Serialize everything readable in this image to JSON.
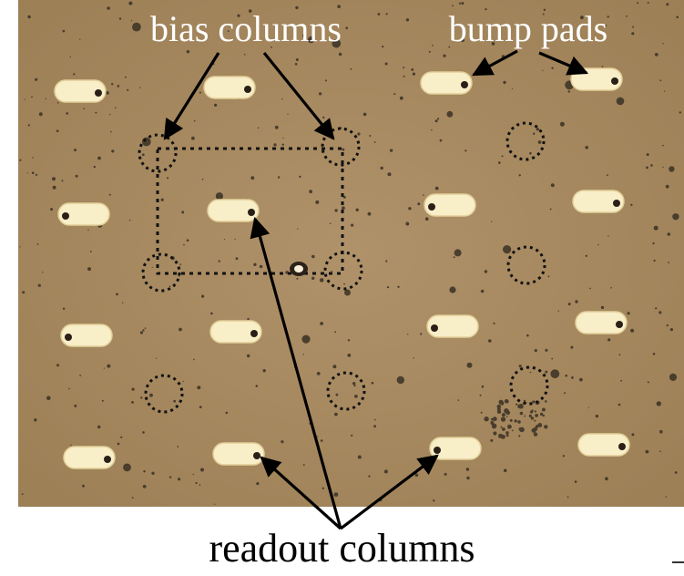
{
  "labels": {
    "top_left": "bias columns",
    "top_right": "bump pads",
    "bottom": "readout columns"
  },
  "colors": {
    "substrate": "#a88a5b",
    "pad_fill": "#f8eec8",
    "annotation": "#000000",
    "label_on_image": "#ffffff"
  }
}
